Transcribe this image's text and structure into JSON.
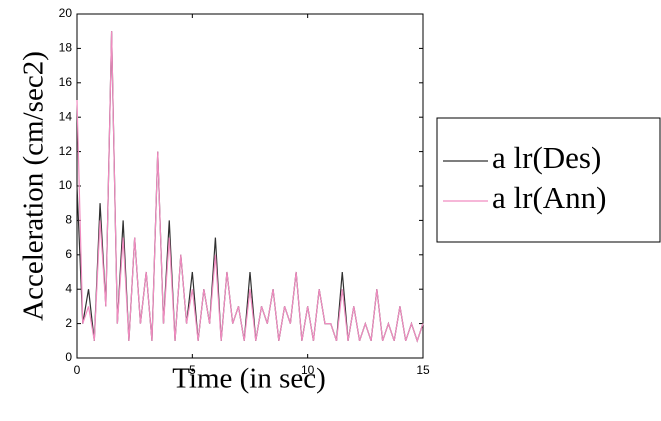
{
  "chart_data": {
    "type": "line",
    "x_label": "Time (in sec)",
    "y_label": "Acceleration (cm/sec2)",
    "x": [
      0,
      0.25,
      0.5,
      0.75,
      1,
      1.25,
      1.5,
      1.75,
      2,
      2.25,
      2.5,
      2.75,
      3,
      3.25,
      3.5,
      3.75,
      4,
      4.25,
      4.5,
      4.75,
      5,
      5.25,
      5.5,
      5.75,
      6,
      6.25,
      6.5,
      6.75,
      7,
      7.25,
      7.5,
      7.75,
      8,
      8.25,
      8.5,
      8.75,
      9,
      9.25,
      9.5,
      9.75,
      10,
      10.25,
      10.5,
      10.75,
      11,
      11.25,
      11.5,
      11.75,
      12,
      12.25,
      12.5,
      12.75,
      13,
      13.25,
      13.5,
      13.75,
      14,
      14.25,
      14.5,
      14.75,
      15
    ],
    "series": [
      {
        "name": "a lr(Des)",
        "color": "#303030",
        "values": [
          10,
          2,
          4,
          1,
          9,
          3,
          19,
          2,
          8,
          1,
          7,
          2,
          5,
          1,
          12,
          2,
          8,
          1,
          6,
          2,
          5,
          1,
          4,
          2,
          7,
          1,
          5,
          2,
          3,
          1,
          5,
          1,
          3,
          2,
          4,
          1,
          3,
          2,
          5,
          1,
          3,
          1,
          4,
          2,
          2,
          1,
          5,
          1,
          3,
          1,
          2,
          1,
          4,
          1,
          2,
          1,
          3,
          1,
          2,
          1,
          2
        ]
      },
      {
        "name": "a lr(Ann)",
        "color": "#f08cc0",
        "values": [
          15,
          2,
          3,
          1,
          8,
          3,
          19,
          2,
          7,
          1,
          7,
          2,
          5,
          1,
          12,
          2,
          7,
          1,
          6,
          2,
          4,
          1,
          4,
          2,
          6,
          1,
          5,
          2,
          3,
          1,
          4,
          1,
          3,
          2,
          4,
          1,
          3,
          2,
          5,
          1,
          3,
          1,
          4,
          2,
          2,
          1,
          4,
          1,
          3,
          1,
          2,
          1,
          4,
          1,
          2,
          1,
          3,
          1,
          2,
          1,
          2
        ]
      }
    ],
    "xlim": [
      0,
      15
    ],
    "ylim": [
      0,
      20
    ],
    "xticks": [
      0,
      5,
      10,
      15
    ],
    "yticks": [
      0,
      2,
      4,
      6,
      8,
      10,
      12,
      14,
      16,
      18,
      20
    ]
  }
}
